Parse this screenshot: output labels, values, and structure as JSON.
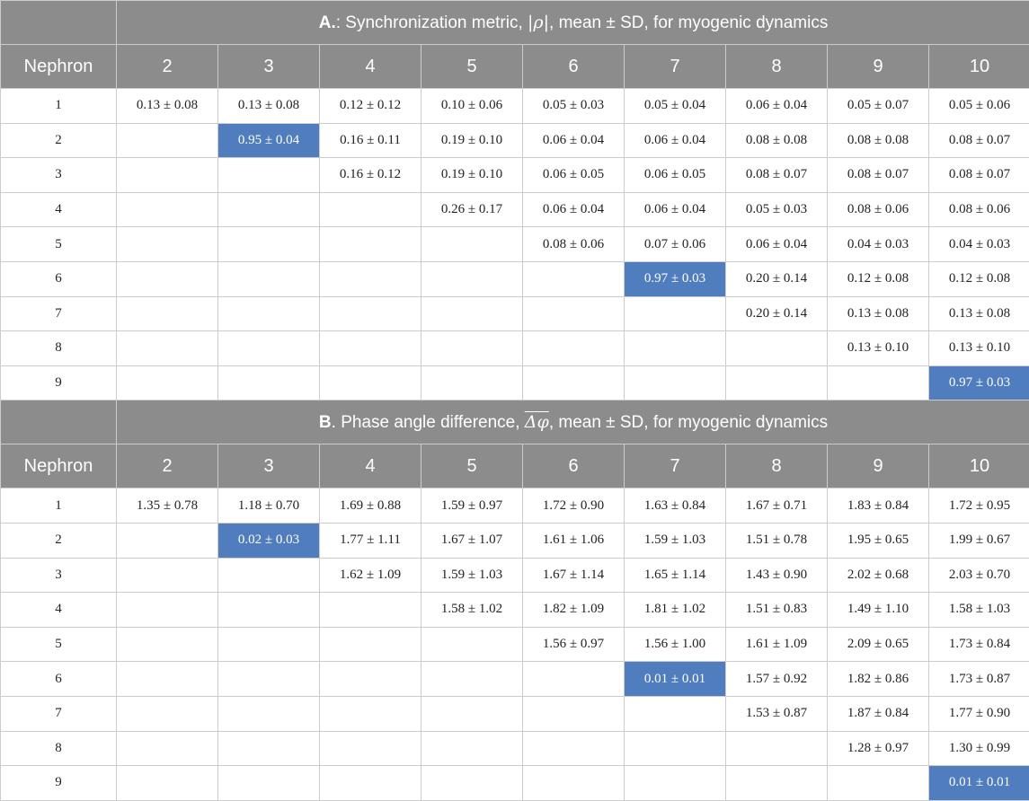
{
  "panel_a": {
    "letter": "A.",
    "title": ": Synchronization metric, ",
    "symbol": "|ρ|",
    "title_tail": ", mean ± SD, for myogenic dynamics",
    "row_header": "Nephron",
    "columns": [
      "2",
      "3",
      "4",
      "5",
      "6",
      "7",
      "8",
      "9",
      "10"
    ],
    "rows": [
      {
        "label": "1",
        "cells": [
          "0.13 ± 0.08",
          "0.13 ± 0.08",
          "0.12 ± 0.12",
          "0.10 ± 0.06",
          "0.05 ± 0.03",
          "0.05 ± 0.04",
          "0.06 ± 0.04",
          "0.05 ± 0.07",
          "0.05 ± 0.06"
        ]
      },
      {
        "label": "2",
        "cells": [
          "",
          "0.95 ± 0.04",
          "0.16 ± 0.11",
          "0.19 ± 0.10",
          "0.06 ± 0.04",
          "0.06 ± 0.04",
          "0.08 ± 0.08",
          "0.08 ± 0.08",
          "0.08 ± 0.07"
        ]
      },
      {
        "label": "3",
        "cells": [
          "",
          "",
          "0.16 ± 0.12",
          "0.19 ± 0.10",
          "0.06 ± 0.05",
          "0.06 ± 0.05",
          "0.08 ± 0.07",
          "0.08 ± 0.07",
          "0.08 ± 0.07"
        ]
      },
      {
        "label": "4",
        "cells": [
          "",
          "",
          "",
          "0.26 ± 0.17",
          "0.06 ± 0.04",
          "0.06 ± 0.04",
          "0.05 ± 0.03",
          "0.08 ± 0.06",
          "0.08 ± 0.06"
        ]
      },
      {
        "label": "5",
        "cells": [
          "",
          "",
          "",
          "",
          "0.08 ± 0.06",
          "0.07 ± 0.06",
          "0.06 ± 0.04",
          "0.04 ± 0.03",
          "0.04 ± 0.03"
        ]
      },
      {
        "label": "6",
        "cells": [
          "",
          "",
          "",
          "",
          "",
          "0.97 ± 0.03",
          "0.20 ± 0.14",
          "0.12 ± 0.08",
          "0.12 ± 0.08"
        ]
      },
      {
        "label": "7",
        "cells": [
          "",
          "",
          "",
          "",
          "",
          "",
          "0.20 ± 0.14",
          "0.13 ± 0.08",
          "0.13 ± 0.08"
        ]
      },
      {
        "label": "8",
        "cells": [
          "",
          "",
          "",
          "",
          "",
          "",
          "",
          "0.13 ± 0.10",
          "0.13 ± 0.10"
        ]
      },
      {
        "label": "9",
        "cells": [
          "",
          "",
          "",
          "",
          "",
          "",
          "",
          "",
          "0.97 ± 0.03"
        ]
      }
    ],
    "highlight_color": "#4f7dbd"
  },
  "panel_b": {
    "letter": "B",
    "title": ". Phase angle difference, ",
    "symbol": "Δφ",
    "title_tail": ", mean ± SD, for myogenic dynamics",
    "row_header": "Nephron",
    "columns": [
      "2",
      "3",
      "4",
      "5",
      "6",
      "7",
      "8",
      "9",
      "10"
    ],
    "rows": [
      {
        "label": "1",
        "cells": [
          "1.35 ± 0.78",
          "1.18 ± 0.70",
          "1.69 ± 0.88",
          "1.59 ± 0.97",
          "1.72 ± 0.90",
          "1.63 ± 0.84",
          "1.67 ± 0.71",
          "1.83 ± 0.84",
          "1.72 ± 0.95"
        ]
      },
      {
        "label": "2",
        "cells": [
          "",
          "0.02 ± 0.03",
          "1.77 ± 1.11",
          "1.67 ± 1.07",
          "1.61 ± 1.06",
          "1.59 ± 1.03",
          "1.51 ± 0.78",
          "1.95 ± 0.65",
          "1.99 ± 0.67"
        ]
      },
      {
        "label": "3",
        "cells": [
          "",
          "",
          "1.62 ± 1.09",
          "1.59 ± 1.03",
          "1.67 ± 1.14",
          "1.65 ± 1.14",
          "1.43 ± 0.90",
          "2.02 ± 0.68",
          "2.03 ± 0.70"
        ]
      },
      {
        "label": "4",
        "cells": [
          "",
          "",
          "",
          "1.58 ± 1.02",
          "1.82 ± 1.09",
          "1.81 ± 1.02",
          "1.51 ± 0.83",
          "1.49 ± 1.10",
          "1.58 ± 1.03"
        ]
      },
      {
        "label": "5",
        "cells": [
          "",
          "",
          "",
          "",
          "1.56 ± 0.97",
          "1.56 ± 1.00",
          "1.61 ± 1.09",
          "2.09 ± 0.65",
          "1.73 ± 0.84"
        ]
      },
      {
        "label": "6",
        "cells": [
          "",
          "",
          "",
          "",
          "",
          "0.01 ± 0.01",
          "1.57 ± 0.92",
          "1.82 ± 0.86",
          "1.73 ± 0.87"
        ]
      },
      {
        "label": "7",
        "cells": [
          "",
          "",
          "",
          "",
          "",
          "",
          "1.53 ± 0.87",
          "1.87 ± 0.84",
          "1.77 ± 0.90"
        ]
      },
      {
        "label": "8",
        "cells": [
          "",
          "",
          "",
          "",
          "",
          "",
          "",
          "1.28 ± 0.97",
          "1.30 ± 0.99"
        ]
      },
      {
        "label": "9",
        "cells": [
          "",
          "",
          "",
          "",
          "",
          "",
          "",
          "",
          "0.01 ± 0.01"
        ]
      }
    ],
    "highlight_color": "#4f7dbd"
  },
  "highlighted_cells": [
    [
      1,
      1
    ],
    [
      5,
      5
    ],
    [
      8,
      8
    ]
  ],
  "colors": {
    "header_bg": "#8c8c8c",
    "header_text": "#ffffff",
    "border": "#cccccc"
  }
}
